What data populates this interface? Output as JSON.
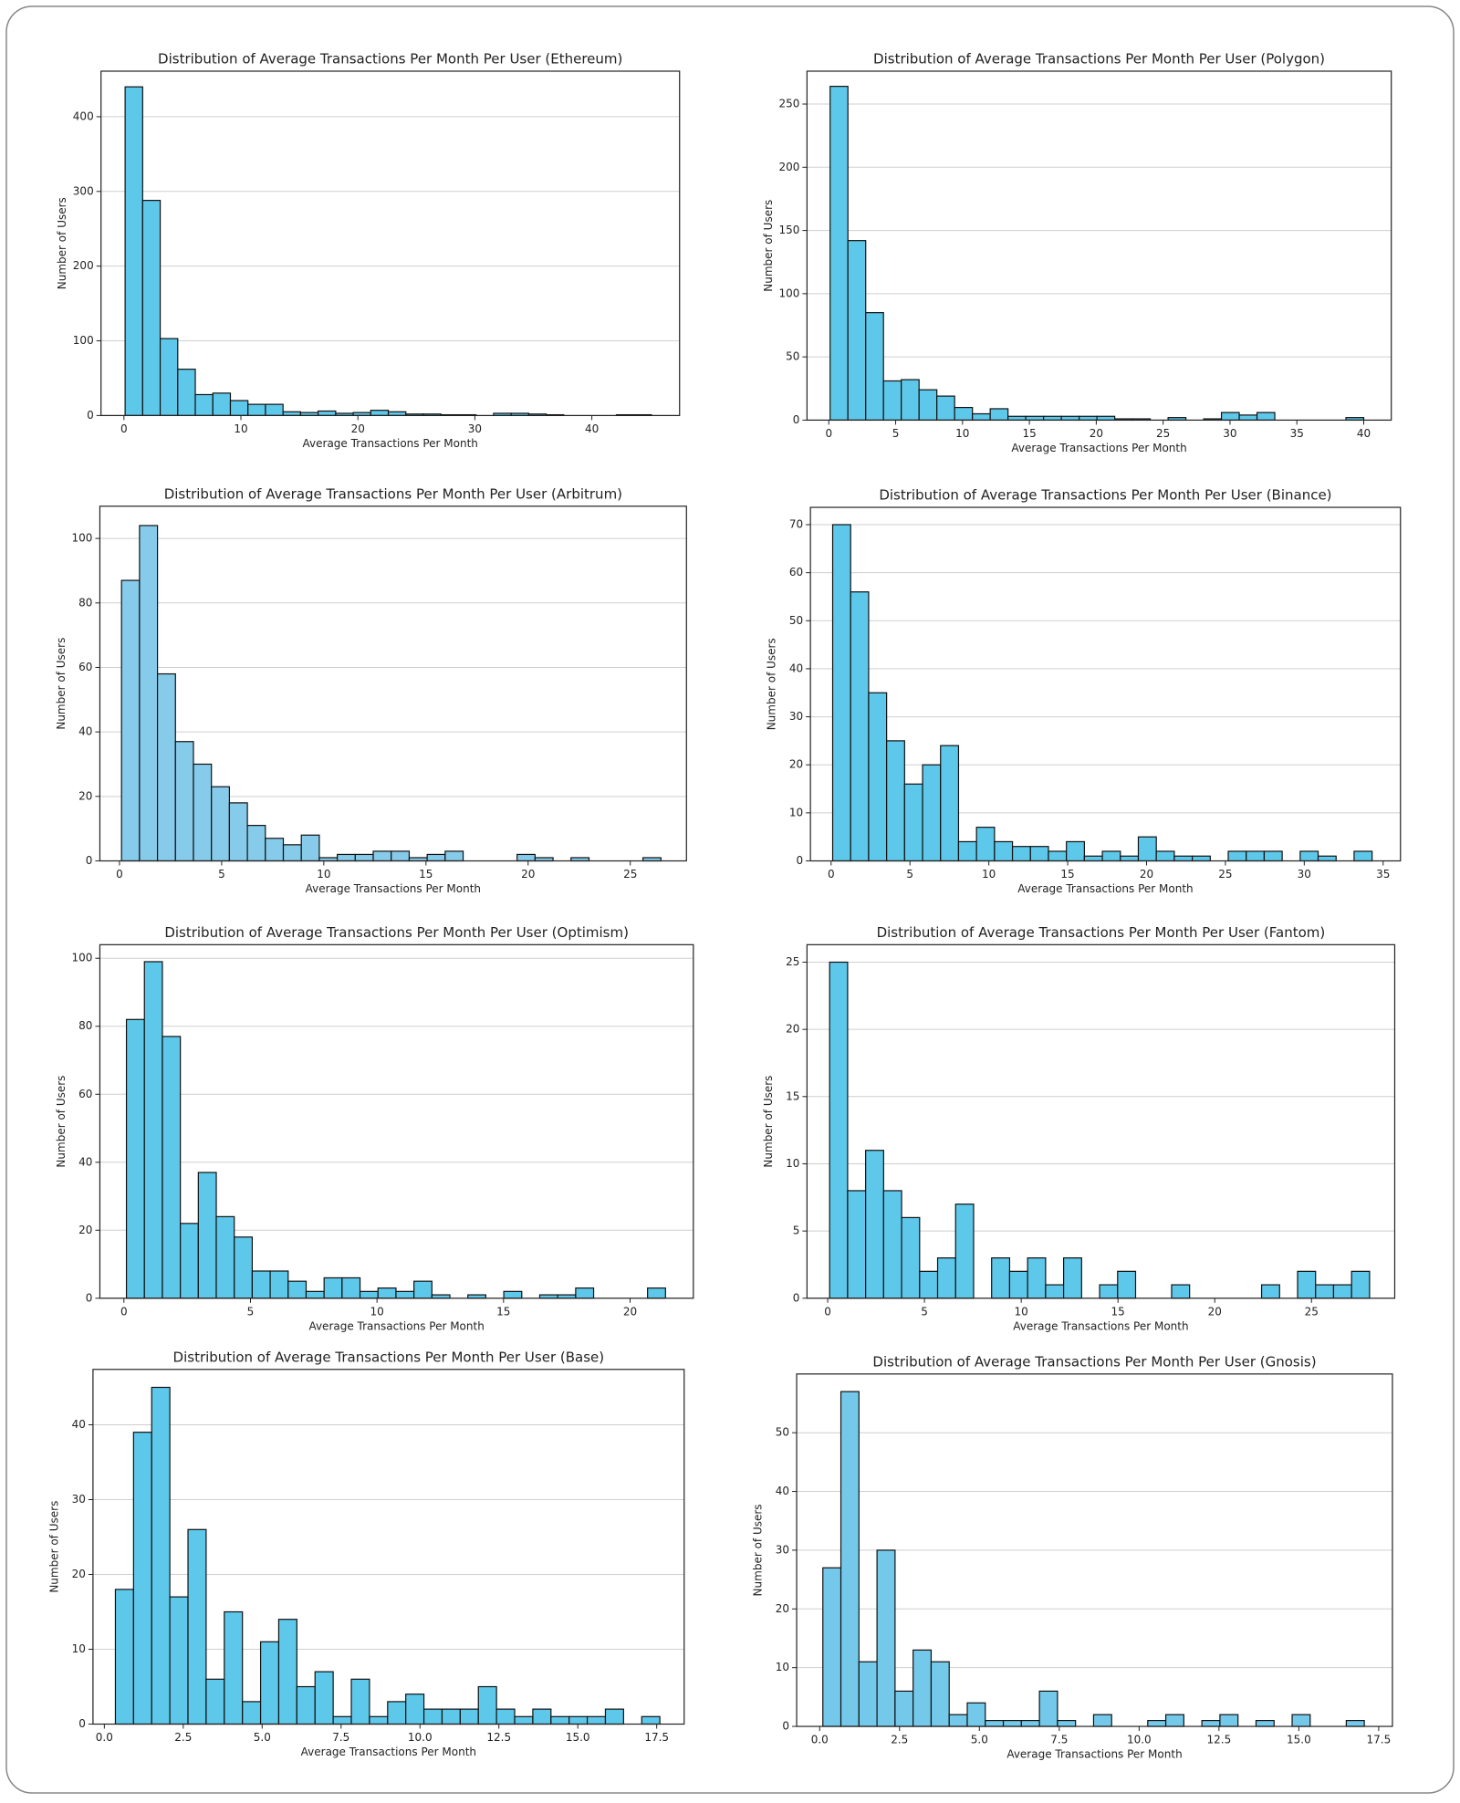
{
  "chart_data": [
    {
      "type": "histogram",
      "title": "Distribution of Average Transactions Per Month Per User (Ethereum)",
      "xlabel": "Average Transactions Per Month",
      "ylabel": "Number of Users",
      "color": "#5ec8ea",
      "bins": [
        0.1,
        1.6,
        3.1,
        4.6,
        6.1,
        7.6,
        9.1,
        10.6,
        12.1,
        13.6,
        15.1,
        16.6,
        18.1,
        19.6,
        21.1,
        22.6,
        24.1,
        25.6,
        27.1,
        28.6,
        30.1,
        31.6,
        33.1,
        34.6,
        36.1,
        37.6,
        39.1,
        40.6,
        42.1,
        43.6,
        45.1
      ],
      "counts": [
        440,
        288,
        103,
        62,
        28,
        30,
        20,
        15,
        15,
        5,
        4,
        6,
        3,
        4,
        7,
        5,
        2,
        2,
        1,
        1,
        0,
        3,
        3,
        2,
        1,
        0,
        0,
        0,
        1,
        1
      ],
      "xlim": [
        -1.96,
        47.5
      ],
      "ylim": [
        0,
        461
      ],
      "xticks": [
        0,
        10,
        20,
        30,
        40
      ],
      "yticks": [
        0,
        100,
        200,
        300,
        400
      ],
      "grid": "y"
    },
    {
      "type": "histogram",
      "title": "Distribution of Average Transactions Per Month Per User (Polygon)",
      "xlabel": "Average Transactions Per Month",
      "ylabel": "Number of Users",
      "color": "#5ec8ea",
      "bins": [
        0.1,
        1.43,
        2.76,
        4.09,
        5.42,
        6.75,
        8.08,
        9.41,
        10.74,
        12.07,
        13.4,
        14.73,
        16.06,
        17.39,
        18.72,
        20.05,
        21.38,
        22.71,
        24.04,
        25.37,
        26.7,
        28.03,
        29.36,
        30.69,
        32.02,
        33.35,
        34.68,
        36.01,
        37.34,
        38.67,
        40.0
      ],
      "counts": [
        264,
        142,
        85,
        31,
        32,
        24,
        19,
        10,
        5,
        9,
        3,
        3,
        3,
        3,
        3,
        3,
        1,
        1,
        0,
        2,
        0,
        1,
        6,
        4,
        6,
        0,
        0,
        0,
        0,
        2
      ],
      "xlim": [
        -1.63,
        42.06
      ],
      "ylim": [
        0,
        276
      ],
      "xticks": [
        0,
        5,
        10,
        15,
        20,
        25,
        30,
        35,
        40
      ],
      "yticks": [
        0,
        50,
        100,
        150,
        200,
        250
      ],
      "grid": "y"
    },
    {
      "type": "histogram",
      "title": "Distribution of Average Transactions Per Month Per User (Arbitrum)",
      "xlabel": "Average Transactions Per Month",
      "ylabel": "Number of Users",
      "color": "#87cbea",
      "bins": [
        0.1,
        0.98,
        1.86,
        2.74,
        3.62,
        4.5,
        5.38,
        6.26,
        7.14,
        8.02,
        8.9,
        9.78,
        10.66,
        11.54,
        12.42,
        13.3,
        14.18,
        15.06,
        15.94,
        16.82,
        17.7,
        18.58,
        19.46,
        20.34,
        21.22,
        22.1,
        22.98,
        23.86,
        24.74,
        25.62,
        26.5
      ],
      "counts": [
        87,
        104,
        58,
        37,
        30,
        23,
        18,
        11,
        7,
        5,
        8,
        1,
        2,
        2,
        3,
        3,
        1,
        2,
        3,
        0,
        0,
        0,
        2,
        1,
        0,
        1,
        0,
        0,
        0,
        1
      ],
      "xlim": [
        -0.96,
        27.75
      ],
      "ylim": [
        0,
        110
      ],
      "xticks": [
        0,
        5,
        10,
        15,
        20,
        25
      ],
      "yticks": [
        0,
        20,
        40,
        60,
        80,
        100
      ],
      "grid": "y"
    },
    {
      "type": "histogram",
      "title": "Distribution of Average Transactions Per Month Per User (Binance)",
      "xlabel": "Average Transactions Per Month",
      "ylabel": "Number of Users",
      "color": "#5ec8ea",
      "bins": [
        0.1,
        1.24,
        2.38,
        3.52,
        4.66,
        5.8,
        6.94,
        8.08,
        9.22,
        10.36,
        11.5,
        12.64,
        13.78,
        14.92,
        16.06,
        17.2,
        18.34,
        19.48,
        20.62,
        21.76,
        22.9,
        24.04,
        25.18,
        26.32,
        27.46,
        28.6,
        29.74,
        30.88,
        32.02,
        33.16,
        34.3
      ],
      "counts": [
        70,
        56,
        35,
        25,
        16,
        20,
        24,
        4,
        7,
        4,
        3,
        3,
        2,
        4,
        1,
        2,
        1,
        5,
        2,
        1,
        1,
        0,
        2,
        2,
        2,
        0,
        2,
        1,
        0,
        2
      ],
      "xlim": [
        -1.31,
        36.1
      ],
      "ylim": [
        0,
        73.6
      ],
      "xticks": [
        0,
        5,
        10,
        15,
        20,
        25,
        30,
        35
      ],
      "yticks": [
        0,
        10,
        20,
        30,
        40,
        50,
        60,
        70
      ],
      "grid": "y"
    },
    {
      "type": "histogram",
      "title": "Distribution of Average Transactions Per Month Per User (Optimism)",
      "xlabel": "Average Transactions Per Month",
      "ylabel": "Number of Users",
      "color": "#5ec8ea",
      "bins": [
        0.1,
        0.81,
        1.52,
        2.23,
        2.94,
        3.65,
        4.36,
        5.07,
        5.78,
        6.49,
        7.2,
        7.91,
        8.62,
        9.33,
        10.04,
        10.75,
        11.46,
        12.17,
        12.88,
        13.59,
        14.3,
        15.01,
        15.72,
        16.43,
        17.14,
        17.85,
        18.56,
        19.27,
        19.98,
        20.69,
        21.4
      ],
      "counts": [
        82,
        99,
        77,
        22,
        37,
        24,
        18,
        8,
        8,
        5,
        2,
        6,
        6,
        2,
        3,
        2,
        5,
        1,
        0,
        1,
        0,
        2,
        0,
        1,
        1,
        3,
        0,
        0,
        0,
        3
      ],
      "xlim": [
        -0.95,
        22.5
      ],
      "ylim": [
        0,
        104
      ],
      "xticks": [
        0,
        5,
        10,
        15,
        20
      ],
      "yticks": [
        0,
        20,
        40,
        60,
        80,
        100
      ],
      "grid": "y"
    },
    {
      "type": "histogram",
      "title": "Distribution of Average Transactions Per Month Per User (Fantom)",
      "xlabel": "Average Transactions Per Month",
      "ylabel": "Number of Users",
      "color": "#5ec8ea",
      "bins": [
        0.1,
        1.03,
        1.96,
        2.89,
        3.82,
        4.75,
        5.68,
        6.61,
        7.54,
        8.47,
        9.4,
        10.33,
        11.26,
        12.19,
        13.12,
        14.05,
        14.98,
        15.91,
        16.84,
        17.77,
        18.7,
        19.63,
        20.56,
        21.49,
        22.42,
        23.35,
        24.28,
        25.21,
        26.14,
        27.07,
        28.0
      ],
      "counts": [
        25,
        8,
        11,
        8,
        6,
        2,
        3,
        7,
        0,
        3,
        2,
        3,
        1,
        3,
        0,
        1,
        2,
        0,
        0,
        1,
        0,
        0,
        0,
        0,
        1,
        0,
        2,
        1,
        1,
        2
      ],
      "xlim": [
        -1.07,
        29.3
      ],
      "ylim": [
        0,
        26.3
      ],
      "xticks": [
        0,
        5,
        10,
        15,
        20,
        25
      ],
      "yticks": [
        0,
        5,
        10,
        15,
        20,
        25
      ],
      "grid": "y"
    },
    {
      "type": "histogram",
      "title": "Distribution of Average Transactions Per Month Per User (Base)",
      "xlabel": "Average Transactions Per Month",
      "ylabel": "Number of Users",
      "color": "#5ec8ea",
      "bins": [
        0.35,
        0.925,
        1.5,
        2.075,
        2.65,
        3.225,
        3.8,
        4.375,
        4.95,
        5.525,
        6.1,
        6.675,
        7.25,
        7.825,
        8.4,
        8.975,
        9.55,
        10.125,
        10.7,
        11.275,
        11.85,
        12.425,
        13.0,
        13.575,
        14.15,
        14.725,
        15.3,
        15.875,
        16.45,
        17.025,
        17.6
      ],
      "counts": [
        18,
        39,
        45,
        17,
        26,
        6,
        15,
        3,
        11,
        14,
        5,
        7,
        1,
        6,
        1,
        3,
        4,
        2,
        2,
        2,
        5,
        2,
        1,
        2,
        1,
        1,
        1,
        2,
        0,
        1
      ],
      "xlim": [
        -0.36,
        18.37
      ],
      "ylim": [
        0,
        47.4
      ],
      "xticks": [
        {
          "value": 0,
          "label": "0.0"
        },
        {
          "value": 2.5,
          "label": "2.5"
        },
        {
          "value": 5,
          "label": "5.0"
        },
        {
          "value": 7.5,
          "label": "7.5"
        },
        {
          "value": 10,
          "label": "10.0"
        },
        {
          "value": 12.5,
          "label": "12.5"
        },
        {
          "value": 15,
          "label": "15.0"
        },
        {
          "value": 17.5,
          "label": "17.5"
        }
      ],
      "yticks": [
        0,
        10,
        20,
        30,
        40
      ],
      "grid": "y"
    },
    {
      "type": "histogram",
      "title": "Distribution of Average Transactions Per Month Per User (Gnosis)",
      "xlabel": "Average Transactions Per Month",
      "ylabel": "Number of Users",
      "color": "#74c9ea",
      "bins": [
        0.1,
        0.665,
        1.23,
        1.795,
        2.36,
        2.925,
        3.49,
        4.055,
        4.62,
        5.185,
        5.75,
        6.315,
        6.88,
        7.445,
        8.01,
        8.575,
        9.14,
        9.705,
        10.27,
        10.835,
        11.4,
        11.965,
        12.53,
        13.095,
        13.66,
        14.225,
        14.79,
        15.355,
        15.92,
        16.485,
        17.05
      ],
      "counts": [
        27,
        57,
        11,
        30,
        6,
        13,
        11,
        2,
        4,
        1,
        1,
        1,
        6,
        1,
        0,
        2,
        0,
        0,
        1,
        2,
        0,
        1,
        2,
        0,
        1,
        0,
        2,
        0,
        0,
        1
      ],
      "xlim": [
        -0.72,
        17.93
      ],
      "ylim": [
        0,
        60
      ],
      "xticks": [
        {
          "value": 0,
          "label": "0.0"
        },
        {
          "value": 2.5,
          "label": "2.5"
        },
        {
          "value": 5,
          "label": "5.0"
        },
        {
          "value": 7.5,
          "label": "7.5"
        },
        {
          "value": 10,
          "label": "10.0"
        },
        {
          "value": 12.5,
          "label": "12.5"
        },
        {
          "value": 15,
          "label": "15.0"
        },
        {
          "value": 17.5,
          "label": "17.5"
        }
      ],
      "yticks": [
        0,
        10,
        20,
        30,
        40,
        50
      ],
      "grid": "y"
    }
  ]
}
